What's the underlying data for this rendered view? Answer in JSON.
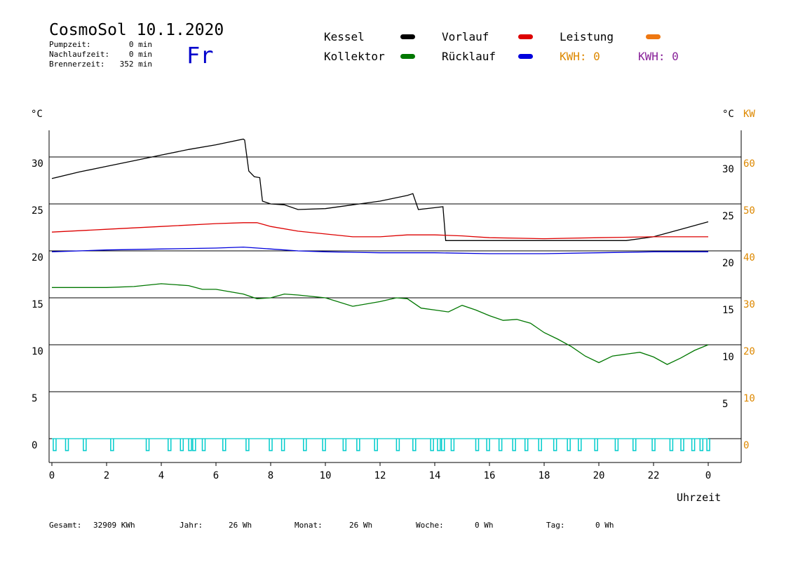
{
  "header": {
    "title": "CosmoSol 10.1.2020",
    "day": "Fr",
    "stats": [
      {
        "label": "Pumpzeit:",
        "value": "0 min"
      },
      {
        "label": "Nachlaufzeit:",
        "value": "0 min"
      },
      {
        "label": "Brennerzeit:",
        "value": "352 min"
      }
    ]
  },
  "legend": {
    "items": [
      {
        "label": "Kessel",
        "color": "#000000"
      },
      {
        "label": "Vorlauf",
        "color": "#dd0000"
      },
      {
        "label": "Leistung",
        "color": "#ee7711"
      },
      {
        "label": "Kollektor",
        "color": "#007700"
      },
      {
        "label": "Rücklauf",
        "color": "#0000dd"
      }
    ],
    "kwh1": "KWH: 0",
    "kwh2": "KWH: 0",
    "kwh1_color": "#dd8800",
    "kwh2_color": "#882299"
  },
  "axes": {
    "left_unit": "°C",
    "right_unit": "°C",
    "right_unit2": "KW",
    "xlabel": "Uhrzeit"
  },
  "footer": {
    "gesamt_label": "Gesamt:",
    "gesamt_value": "32909 KWh",
    "jahr_label": "Jahr:",
    "jahr_value": "26 Wh",
    "monat_label": "Monat:",
    "monat_value": "26 Wh",
    "woche_label": "Woche:",
    "woche_value": "0 Wh",
    "tag_label": "Tag:",
    "tag_value": "0 Wh"
  },
  "chart_data": {
    "type": "line",
    "xlim": [
      0,
      24
    ],
    "ylim_left": [
      -2,
      33
    ],
    "ylim_right_kw": [
      -4,
      66
    ],
    "x_ticks": [
      "0",
      "2",
      "4",
      "6",
      "8",
      "10",
      "12",
      "14",
      "16",
      "18",
      "20",
      "22",
      "0"
    ],
    "y_ticks_left": [
      0,
      5,
      10,
      15,
      20,
      25,
      30
    ],
    "y_ticks_right_c": [
      5,
      10,
      15,
      20,
      25,
      30
    ],
    "y_ticks_right_kw": [
      0,
      10,
      20,
      30,
      40,
      50,
      60
    ],
    "gridlines": [
      0,
      5,
      10,
      15,
      20,
      25,
      30
    ],
    "series": [
      {
        "name": "Kessel",
        "color": "#000000",
        "points": [
          [
            0,
            27.7
          ],
          [
            1,
            28.4
          ],
          [
            2,
            29
          ],
          [
            3,
            29.6
          ],
          [
            4,
            30.2
          ],
          [
            5,
            30.8
          ],
          [
            6,
            31.3
          ],
          [
            7,
            31.9
          ],
          [
            7.05,
            31.8
          ],
          [
            7.2,
            28.5
          ],
          [
            7.4,
            27.9
          ],
          [
            7.6,
            27.8
          ],
          [
            7.7,
            25.3
          ],
          [
            8,
            25
          ],
          [
            8.5,
            24.9
          ],
          [
            9,
            24.4
          ],
          [
            10,
            24.5
          ],
          [
            11,
            24.9
          ],
          [
            12,
            25.3
          ],
          [
            13,
            25.9
          ],
          [
            13.2,
            26.1
          ],
          [
            13.4,
            24.4
          ],
          [
            14,
            24.6
          ],
          [
            14.3,
            24.7
          ],
          [
            14.4,
            21.1
          ],
          [
            16,
            21.1
          ],
          [
            18,
            21.1
          ],
          [
            20,
            21.1
          ],
          [
            21,
            21.1
          ],
          [
            22,
            21.5
          ],
          [
            23,
            22.3
          ],
          [
            24,
            23.1
          ]
        ]
      },
      {
        "name": "Vorlauf",
        "color": "#dd0000",
        "points": [
          [
            0,
            22
          ],
          [
            2,
            22.3
          ],
          [
            4,
            22.6
          ],
          [
            6,
            22.9
          ],
          [
            7,
            23
          ],
          [
            7.5,
            23
          ],
          [
            8,
            22.6
          ],
          [
            9,
            22.1
          ],
          [
            10,
            21.8
          ],
          [
            11,
            21.5
          ],
          [
            12,
            21.5
          ],
          [
            13,
            21.7
          ],
          [
            14,
            21.7
          ],
          [
            15,
            21.6
          ],
          [
            16,
            21.4
          ],
          [
            18,
            21.3
          ],
          [
            20,
            21.4
          ],
          [
            22,
            21.5
          ],
          [
            24,
            21.5
          ]
        ]
      },
      {
        "name": "Rücklauf",
        "color": "#0000dd",
        "points": [
          [
            0,
            19.9
          ],
          [
            2,
            20.1
          ],
          [
            4,
            20.2
          ],
          [
            6,
            20.3
          ],
          [
            7,
            20.4
          ],
          [
            8,
            20.2
          ],
          [
            9,
            20
          ],
          [
            10,
            19.9
          ],
          [
            12,
            19.8
          ],
          [
            14,
            19.8
          ],
          [
            16,
            19.7
          ],
          [
            18,
            19.7
          ],
          [
            20,
            19.8
          ],
          [
            22,
            19.9
          ],
          [
            24,
            19.9
          ]
        ]
      },
      {
        "name": "Kollektor",
        "color": "#007700",
        "points": [
          [
            0,
            16.1
          ],
          [
            2,
            16.1
          ],
          [
            3,
            16.2
          ],
          [
            4,
            16.5
          ],
          [
            5,
            16.3
          ],
          [
            5.5,
            15.9
          ],
          [
            6,
            15.9
          ],
          [
            7,
            15.4
          ],
          [
            7.5,
            14.9
          ],
          [
            8,
            15
          ],
          [
            8.5,
            15.4
          ],
          [
            9,
            15.3
          ],
          [
            10,
            15
          ],
          [
            11,
            14.1
          ],
          [
            12,
            14.6
          ],
          [
            12.6,
            15
          ],
          [
            13,
            14.9
          ],
          [
            13.5,
            13.9
          ],
          [
            14,
            13.7
          ],
          [
            14.5,
            13.5
          ],
          [
            15,
            14.2
          ],
          [
            15.5,
            13.7
          ],
          [
            16,
            13.1
          ],
          [
            16.5,
            12.6
          ],
          [
            17,
            12.7
          ],
          [
            17.5,
            12.3
          ],
          [
            18,
            11.3
          ],
          [
            18.5,
            10.6
          ],
          [
            19,
            9.8
          ],
          [
            19.5,
            8.8
          ],
          [
            20,
            8.1
          ],
          [
            20.5,
            8.8
          ],
          [
            21,
            9
          ],
          [
            21.5,
            9.2
          ],
          [
            22,
            8.7
          ],
          [
            22.5,
            7.9
          ],
          [
            23,
            8.6
          ],
          [
            23.5,
            9.4
          ],
          [
            24,
            10
          ]
        ]
      }
    ],
    "pump_pulses_hours": [
      0.05,
      0.5,
      1.15,
      2.15,
      3.45,
      4.25,
      4.7,
      5.0,
      5.15,
      5.5,
      6.25,
      7.1,
      7.95,
      8.4,
      9.2,
      9.9,
      10.65,
      11.15,
      11.8,
      12.6,
      13.2,
      13.85,
      14.1,
      14.25,
      14.6,
      15.5,
      15.9,
      16.35,
      16.85,
      17.3,
      17.8,
      18.35,
      18.85,
      19.25,
      19.85,
      20.6,
      21.25,
      21.95,
      22.6,
      23.0,
      23.4,
      23.7,
      23.95
    ]
  }
}
